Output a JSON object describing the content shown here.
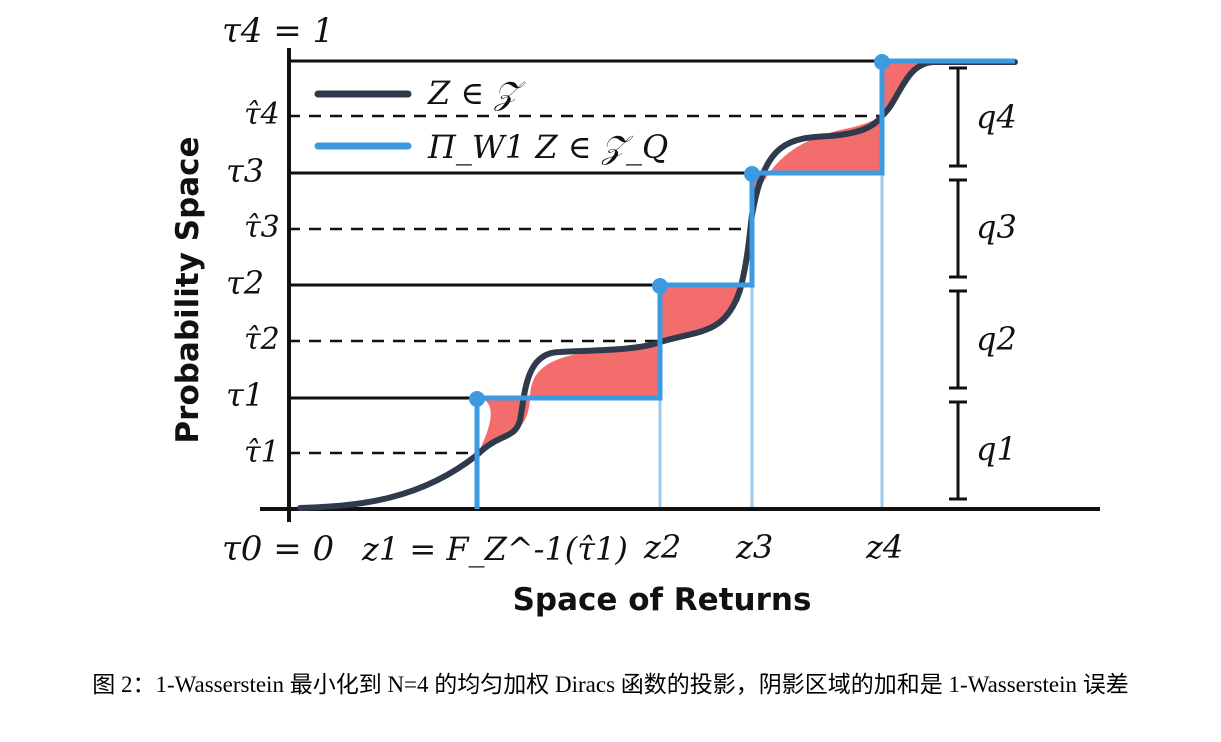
{
  "figure": {
    "axis_top_label": "τ4 = 1",
    "axis_origin_label": "τ0 = 0",
    "y_axis_title": "Probability Space",
    "x_axis_title": "Space of Returns",
    "tau_labels": [
      "τ1",
      "τ2",
      "τ3"
    ],
    "tau_hat_labels": [
      "τ̂1",
      "τ̂2",
      "τ̂3",
      "τ̂4"
    ],
    "z_labels": {
      "z1": "z1 = F_Z^-1(τ̂1)",
      "z2": "z2",
      "z3": "z3",
      "z4": "z4"
    },
    "q_labels": [
      "q1",
      "q2",
      "q3",
      "q4"
    ],
    "legend": {
      "cdf": "Z ∈ 𝒵",
      "projection": "Π_W1 Z ∈ 𝒵_Q"
    },
    "colors": {
      "cdf_line": "#2f3a4d",
      "projection_line": "#3b9ae0",
      "shaded_area": "#f46d6d",
      "axes": "#111111"
    }
  },
  "caption": "图 2：1-Wasserstein 最小化到 N=4 的均匀加权 Diracs 函数的投影，阴影区域的加和是 1-Wasserstein 误差"
}
